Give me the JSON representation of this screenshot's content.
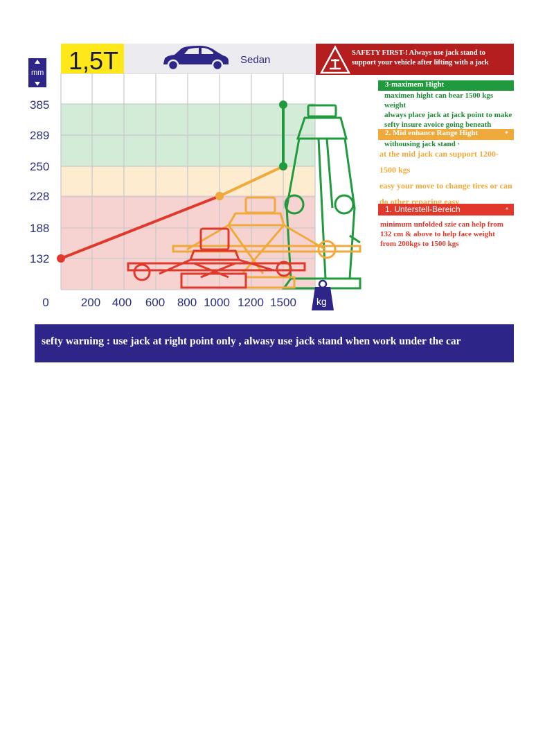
{
  "header": {
    "capacity_label": "1,5T",
    "vehicle_label": "Sedan",
    "vehicle_icon": "car-icon",
    "unit_y": "mm",
    "unit_x": "kg",
    "safety_text": "SAFETY FIRST-! Always use jack stand to support your vehicle after lifting with a jack"
  },
  "panels": {
    "green": {
      "title": "3-maximem Hight",
      "lines": [
        "maximen hight can bear 1500 kgs weight",
        "always place jack at jack point to make",
        "sefty insure avoice going beneath vahical",
        "withousing jack stand ·"
      ]
    },
    "orange": {
      "title": "2.  Mid enhance Range Hight",
      "star": "*",
      "lines": [
        "at the mid jack can support 1200-1500 kgs",
        "easy your move to change tires or can",
        "do other reparing easy"
      ]
    },
    "red": {
      "title": "1. Unterstell-Bereich",
      "star": "*",
      "lines": [
        "minimum unfolded szie can help from",
        "132 cm & above to help face weight",
        "from 200kgs to 1500 kgs"
      ]
    }
  },
  "warning": "sefty warning :  use jack at right point only , alwasy use jack stand when work under the car",
  "colors": {
    "red": "#e0392b",
    "orange": "#f0a93b",
    "green": "#1f9a3d",
    "navy": "#2d2688",
    "yellow": "#ffe81a",
    "band_green": "#d2ecd8",
    "band_orange": "#fdeccf",
    "band_red": "#f6d3d0"
  },
  "chart_data": {
    "type": "line",
    "title": "",
    "xlabel": "kg",
    "ylabel": "mm",
    "x_ticks": [
      "0",
      "200",
      "400",
      "600",
      "800",
      "1000",
      "1200",
      "1500"
    ],
    "y_ticks": [
      "385",
      "289",
      "250",
      "228",
      "188",
      "132"
    ],
    "bands": [
      {
        "color": "green",
        "from": "289",
        "to": "385"
      },
      {
        "color": "orange",
        "from": "228",
        "to": "250"
      },
      {
        "color": "red",
        "from": "132",
        "to": "228"
      }
    ],
    "series": [
      {
        "color": "red",
        "points": [
          {
            "x": 0,
            "y": 132
          },
          {
            "x": 1000,
            "y": 228
          }
        ]
      },
      {
        "color": "orange",
        "points": [
          {
            "x": 1000,
            "y": 228
          },
          {
            "x": 1500,
            "y": 250
          }
        ]
      },
      {
        "color": "green",
        "points": [
          {
            "x": 1500,
            "y": 250
          },
          {
            "x": 1500,
            "y": 385
          }
        ]
      }
    ]
  }
}
